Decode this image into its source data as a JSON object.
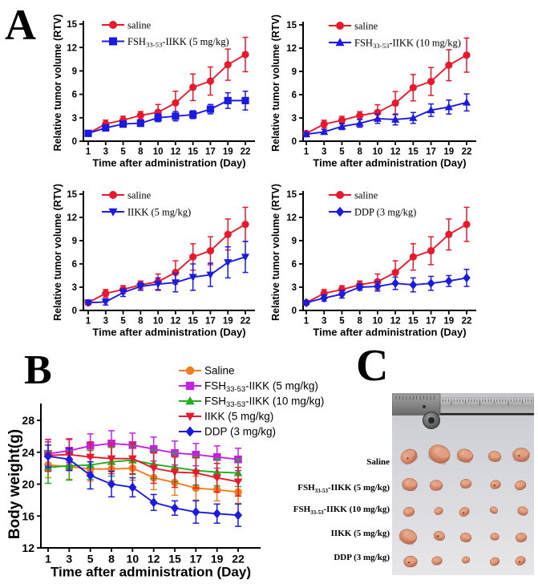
{
  "panels": {
    "a": {
      "label": "A"
    },
    "b": {
      "label": "B"
    },
    "c": {
      "label": "C",
      "rows": [
        {
          "name": "Saline",
          "label": {
            "pre": "Saline"
          }
        },
        {
          "name": "FSH33-53-IIKK (5 mg/kg)",
          "label": {
            "pre": "FSH",
            "sub": "33-53",
            "post": "-IIKK (5 mg/kg)"
          }
        },
        {
          "name": "FSH33-53-IIKK (10 mg/kg)",
          "label": {
            "pre": "FSH",
            "sub": "33-53",
            "post": "-IIKK (10 mg/kg)"
          }
        },
        {
          "name": "IIKK (5 mg/kg)",
          "label": {
            "pre": "IIKK (5 mg/kg)"
          }
        },
        {
          "name": "DDP (3 mg/kg)",
          "label": {
            "pre": "DDP (3 mg/kg)"
          }
        }
      ],
      "tumor_sizes": [
        [
          21,
          27,
          20,
          16,
          21
        ],
        [
          19,
          16,
          14,
          13,
          14
        ],
        [
          14,
          11,
          13,
          10,
          13
        ],
        [
          22,
          14,
          14,
          11,
          14
        ],
        [
          17,
          13,
          10,
          12,
          13
        ]
      ],
      "colors": {
        "photo_bg": "#d6d7dc",
        "tumor": "#d88f6e",
        "ruler": "#a8a8a8"
      }
    }
  },
  "chart_data": [
    {
      "id": "rtv-fsh5",
      "type": "line",
      "x": [
        1,
        3,
        5,
        8,
        10,
        12,
        15,
        17,
        19,
        22
      ],
      "xlabel": "Time after administration (Day)",
      "ylabel": "Relative tumor volume (RTV)",
      "ylim": [
        0,
        15
      ],
      "yticks": [
        0,
        3,
        6,
        9,
        12,
        15
      ],
      "grid": false,
      "legend_position": "top-inside",
      "series": [
        {
          "name": "saline",
          "label": {
            "pre": "saline"
          },
          "color": "#e8192c",
          "marker": "circle",
          "values": [
            1.0,
            2.2,
            2.7,
            3.3,
            3.7,
            4.9,
            6.9,
            7.7,
            9.8,
            11.1
          ],
          "errors": [
            0.3,
            0.5,
            0.5,
            0.5,
            1.0,
            1.5,
            1.7,
            1.8,
            2.0,
            2.2
          ]
        },
        {
          "name": "FSH33-53-IIKK (5 mg/kg)",
          "label": {
            "pre": "FSH",
            "sub": "33-53",
            "post": "-IIKK (5 mg/kg)"
          },
          "color": "#1b1be0",
          "marker": "square",
          "values": [
            1.0,
            1.7,
            2.2,
            2.3,
            3.0,
            3.2,
            3.4,
            4.1,
            5.2,
            5.2
          ],
          "errors": [
            0.2,
            0.3,
            0.4,
            0.4,
            0.5,
            0.6,
            0.5,
            0.6,
            1.0,
            1.2
          ]
        }
      ]
    },
    {
      "id": "rtv-fsh10",
      "type": "line",
      "x": [
        1,
        3,
        5,
        8,
        10,
        12,
        15,
        17,
        19,
        22
      ],
      "xlabel": "Time after administration (Day)",
      "ylabel": "Relative tumor volume (RTV)",
      "ylim": [
        0,
        15
      ],
      "yticks": [
        0,
        3,
        6,
        9,
        12,
        15
      ],
      "grid": false,
      "legend_position": "top-inside",
      "series": [
        {
          "name": "saline",
          "label": {
            "pre": "saline"
          },
          "color": "#e8192c",
          "marker": "circle",
          "values": [
            1.0,
            2.2,
            2.7,
            3.3,
            3.7,
            4.9,
            6.9,
            7.7,
            9.8,
            11.1
          ],
          "errors": [
            0.3,
            0.5,
            0.5,
            0.5,
            1.0,
            1.5,
            1.7,
            1.8,
            2.0,
            2.2
          ]
        },
        {
          "name": "FSH33-53-IIKK (10 mg/kg)",
          "label": {
            "pre": "FSH",
            "sub": "33-53",
            "post": "-IIKK (10 mg/kg)"
          },
          "color": "#1b1be0",
          "marker": "triangle-up",
          "values": [
            0.9,
            1.2,
            1.9,
            2.3,
            2.9,
            2.8,
            3.0,
            4.0,
            4.4,
            5.0
          ],
          "errors": [
            0.2,
            0.3,
            0.4,
            0.5,
            0.6,
            0.7,
            0.7,
            0.8,
            0.9,
            1.1
          ]
        }
      ]
    },
    {
      "id": "rtv-iikk",
      "type": "line",
      "x": [
        1,
        3,
        5,
        8,
        10,
        12,
        15,
        17,
        19,
        22
      ],
      "xlabel": "Time after administration (Day)",
      "ylabel": "Relative tumor volume (RTV)",
      "ylim": [
        0,
        15
      ],
      "yticks": [
        0,
        3,
        6,
        9,
        12,
        15
      ],
      "grid": false,
      "legend_position": "top-inside",
      "series": [
        {
          "name": "saline",
          "label": {
            "pre": "saline"
          },
          "color": "#e8192c",
          "marker": "circle",
          "values": [
            1.0,
            2.2,
            2.7,
            3.3,
            3.7,
            4.9,
            6.9,
            7.7,
            9.8,
            11.1
          ],
          "errors": [
            0.3,
            0.5,
            0.5,
            0.5,
            1.0,
            1.5,
            1.7,
            1.8,
            2.0,
            2.2
          ]
        },
        {
          "name": "IIKK (5 mg/kg)",
          "label": {
            "pre": "IIKK (5 mg/kg)"
          },
          "color": "#1b1be0",
          "marker": "triangle-down",
          "values": [
            1.0,
            1.1,
            2.3,
            3.1,
            3.4,
            3.6,
            4.3,
            4.6,
            6.2,
            6.9
          ],
          "errors": [
            0.2,
            0.4,
            0.5,
            0.5,
            0.8,
            1.2,
            1.7,
            1.5,
            2.0,
            2.0
          ]
        }
      ]
    },
    {
      "id": "rtv-ddp",
      "type": "line",
      "x": [
        1,
        3,
        5,
        8,
        10,
        12,
        15,
        17,
        19,
        22
      ],
      "xlabel": "Time after administration (Day)",
      "ylabel": "Relative tumor volume (RTV)",
      "ylim": [
        0,
        15
      ],
      "yticks": [
        0,
        3,
        6,
        9,
        12,
        15
      ],
      "grid": false,
      "legend_position": "top-inside",
      "series": [
        {
          "name": "saline",
          "label": {
            "pre": "saline"
          },
          "color": "#e8192c",
          "marker": "circle",
          "values": [
            1.0,
            2.2,
            2.7,
            3.3,
            3.7,
            4.9,
            6.9,
            7.7,
            9.8,
            11.1
          ],
          "errors": [
            0.3,
            0.5,
            0.5,
            0.5,
            1.0,
            1.5,
            1.7,
            1.8,
            2.0,
            2.2
          ]
        },
        {
          "name": "DDP (3 mg/kg)",
          "label": {
            "pre": "DDP (3 mg/kg)"
          },
          "color": "#1b1be0",
          "marker": "diamond",
          "values": [
            1.0,
            1.6,
            2.1,
            3.0,
            3.1,
            3.5,
            3.3,
            3.5,
            3.8,
            4.2
          ],
          "errors": [
            0.2,
            0.4,
            0.5,
            0.4,
            0.6,
            0.8,
            0.9,
            0.9,
            0.7,
            1.1
          ]
        }
      ]
    },
    {
      "id": "body-weight",
      "type": "line",
      "x": [
        1,
        3,
        5,
        8,
        10,
        12,
        15,
        17,
        19,
        22
      ],
      "xlabel": "Time after administration (Day)",
      "ylabel": "Body weight(g)",
      "ylim": [
        12,
        28
      ],
      "yticks": [
        12,
        16,
        20,
        24,
        28
      ],
      "grid": false,
      "legend_position": "top-right-inside",
      "series": [
        {
          "name": "Saline",
          "label": {
            "pre": "Saline"
          },
          "color": "#f47c20",
          "marker": "circle",
          "values": [
            22.4,
            22.2,
            21.9,
            21.9,
            22.0,
            20.8,
            20.2,
            19.5,
            19.3,
            19.0
          ],
          "errors": [
            1.6,
            1.6,
            1.5,
            1.5,
            1.5,
            1.5,
            1.6,
            1.5,
            1.4,
            1.4
          ]
        },
        {
          "name": "FSH33-53-IIKK (5 mg/kg)",
          "label": {
            "pre": "FSH",
            "sub": "33-53",
            "post": "-IIKK (5 mg/kg)"
          },
          "color": "#c221e2",
          "marker": "square",
          "values": [
            23.8,
            24.2,
            24.8,
            25.1,
            24.9,
            24.4,
            23.9,
            23.7,
            23.4,
            23.1
          ],
          "errors": [
            1.5,
            1.5,
            1.5,
            1.6,
            1.5,
            1.5,
            1.5,
            1.4,
            1.4,
            1.4
          ]
        },
        {
          "name": "FSH33-53-IIKK (10 mg/kg)",
          "label": {
            "pre": "FSH",
            "sub": "33-53",
            "post": "-IIKK (10 mg/kg)"
          },
          "color": "#1fae1f",
          "marker": "triangle-up",
          "values": [
            22.1,
            22.3,
            22.4,
            22.8,
            23.0,
            22.5,
            22.1,
            21.7,
            21.5,
            21.4
          ],
          "errors": [
            2.0,
            1.8,
            1.8,
            1.8,
            1.8,
            1.8,
            1.8,
            1.8,
            1.7,
            1.7
          ]
        },
        {
          "name": "IIKK (5 mg/kg)",
          "label": {
            "pre": "IIKK (5 mg/kg)"
          },
          "color": "#e8192c",
          "marker": "triangle-down",
          "values": [
            23.6,
            23.7,
            23.4,
            23.2,
            23.2,
            22.0,
            21.5,
            21.4,
            20.8,
            20.3
          ],
          "errors": [
            2.0,
            1.9,
            1.9,
            1.9,
            1.9,
            1.9,
            1.9,
            1.9,
            1.8,
            1.8
          ]
        },
        {
          "name": "DDP (3 mg/kg)",
          "label": {
            "pre": "DDP (3 mg/kg)"
          },
          "color": "#1b1be0",
          "marker": "diamond",
          "values": [
            23.5,
            23.1,
            21.1,
            20.0,
            19.6,
            17.7,
            17.0,
            16.5,
            16.3,
            16.1
          ],
          "errors": [
            1.4,
            1.4,
            1.7,
            1.6,
            1.2,
            1.0,
            0.9,
            1.4,
            1.2,
            1.4
          ]
        }
      ]
    }
  ]
}
